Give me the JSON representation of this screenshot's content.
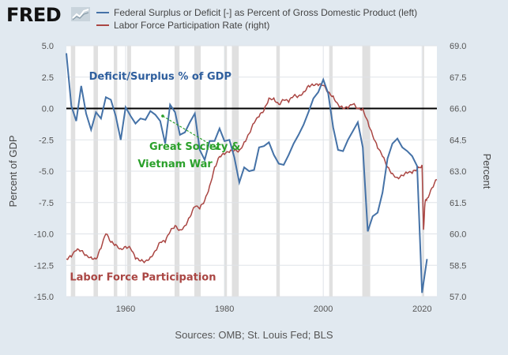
{
  "logo": {
    "text": "FRED"
  },
  "legend": [
    {
      "label": "Federal Surplus or Deficit [-] as Percent of Gross Domestic Product (left)",
      "color": "#4572a7"
    },
    {
      "label": "Labor Force Participation Rate (right)",
      "color": "#aa4643"
    }
  ],
  "source": "Sources: OMB; St. Louis Fed; BLS",
  "chart_data": {
    "type": "line",
    "xlabel": "",
    "ylabel_left": "Percent of GDP",
    "ylabel_right": "Percent",
    "xlim": [
      1948,
      2023
    ],
    "ylim_left": [
      -15.0,
      5.0
    ],
    "ylim_right": [
      57.0,
      69.0
    ],
    "x_ticks": [
      "1960",
      "1980",
      "2000",
      "2020"
    ],
    "y_ticks_left": [
      "5.0",
      "2.5",
      "0.0",
      "-2.5",
      "-5.0",
      "-7.5",
      "-10.0",
      "-12.5",
      "-15.0"
    ],
    "y_ticks_right": [
      "69.0",
      "67.5",
      "66.0",
      "64.5",
      "63.0",
      "61.5",
      "60.0",
      "58.5",
      "57.0"
    ],
    "grid": true,
    "recessions": [
      [
        1948.9,
        1949.8
      ],
      [
        1953.5,
        1954.4
      ],
      [
        1957.6,
        1958.3
      ],
      [
        1960.3,
        1961.1
      ],
      [
        1969.9,
        1970.9
      ],
      [
        1973.9,
        1975.2
      ],
      [
        1980.0,
        1980.5
      ],
      [
        1981.5,
        1982.9
      ],
      [
        1990.5,
        1991.2
      ],
      [
        2001.2,
        2001.9
      ],
      [
        2007.9,
        2009.5
      ],
      [
        2020.1,
        2020.4
      ]
    ],
    "series": [
      {
        "axis": "left",
        "color": "#4572a7",
        "x": [
          1948,
          1949,
          1950,
          1951,
          1952,
          1953,
          1954,
          1955,
          1956,
          1957,
          1958,
          1959,
          1960,
          1961,
          1962,
          1963,
          1964,
          1965,
          1966,
          1967,
          1968,
          1969,
          1970,
          1971,
          1972,
          1973,
          1974,
          1975,
          1976,
          1977,
          1978,
          1979,
          1980,
          1981,
          1982,
          1983,
          1984,
          1985,
          1986,
          1987,
          1988,
          1989,
          1990,
          1991,
          1992,
          1993,
          1994,
          1995,
          1996,
          1997,
          1998,
          1999,
          2000,
          2001,
          2002,
          2003,
          2004,
          2005,
          2006,
          2007,
          2008,
          2009,
          2010,
          2011,
          2012,
          2013,
          2014,
          2015,
          2016,
          2017,
          2018,
          2019,
          2020,
          2021
        ],
        "values": [
          4.4,
          0.2,
          -1.0,
          1.8,
          -0.4,
          -1.7,
          -0.3,
          -0.8,
          0.9,
          0.7,
          -0.6,
          -2.5,
          0.1,
          -0.6,
          -1.2,
          -0.8,
          -0.9,
          -0.2,
          -0.5,
          -1.0,
          -2.8,
          0.3,
          -0.3,
          -2.1,
          -1.9,
          -1.1,
          -0.4,
          -3.3,
          -4.1,
          -2.6,
          -2.6,
          -1.6,
          -2.6,
          -2.5,
          -3.9,
          -5.9,
          -4.7,
          -5.0,
          -4.9,
          -3.1,
          -3.0,
          -2.7,
          -3.7,
          -4.4,
          -4.5,
          -3.7,
          -2.8,
          -2.1,
          -1.3,
          -0.3,
          0.8,
          1.3,
          2.3,
          1.2,
          -1.5,
          -3.3,
          -3.4,
          -2.5,
          -1.8,
          -1.1,
          -3.1,
          -9.8,
          -8.6,
          -8.3,
          -6.7,
          -4.0,
          -2.8,
          -2.4,
          -3.1,
          -3.4,
          -3.8,
          -4.6,
          -14.7,
          -12.0
        ]
      },
      {
        "axis": "right",
        "color": "#aa4643",
        "x": [
          1948,
          1949,
          1950,
          1951,
          1952,
          1953,
          1954,
          1955,
          1956,
          1957,
          1958,
          1959,
          1960,
          1961,
          1962,
          1963,
          1964,
          1965,
          1966,
          1967,
          1968,
          1969,
          1970,
          1971,
          1972,
          1973,
          1974,
          1975,
          1976,
          1977,
          1978,
          1979,
          1980,
          1981,
          1982,
          1983,
          1984,
          1985,
          1986,
          1987,
          1988,
          1989,
          1990,
          1991,
          1992,
          1993,
          1994,
          1995,
          1996,
          1997,
          1998,
          1999,
          2000,
          2001,
          2002,
          2003,
          2004,
          2005,
          2006,
          2007,
          2008,
          2009,
          2010,
          2011,
          2012,
          2013,
          2014,
          2015,
          2016,
          2017,
          2018,
          2019,
          2020,
          2020.3,
          2020.6,
          2021,
          2022,
          2023
        ],
        "values": [
          58.8,
          58.9,
          59.2,
          59.2,
          59.0,
          58.9,
          58.8,
          59.3,
          60.0,
          59.6,
          59.5,
          59.3,
          59.4,
          59.3,
          58.8,
          58.7,
          58.7,
          58.9,
          59.2,
          59.6,
          59.6,
          60.1,
          60.4,
          60.2,
          60.4,
          60.8,
          61.3,
          61.2,
          61.6,
          62.3,
          63.2,
          63.7,
          63.8,
          63.9,
          64.0,
          64.0,
          64.4,
          64.8,
          65.3,
          65.6,
          65.9,
          66.5,
          66.5,
          66.2,
          66.4,
          66.3,
          66.6,
          66.6,
          66.8,
          67.1,
          67.1,
          67.1,
          67.1,
          66.8,
          66.6,
          66.2,
          66.0,
          66.0,
          66.2,
          66.0,
          66.0,
          65.4,
          64.7,
          64.1,
          63.7,
          63.2,
          62.9,
          62.7,
          62.8,
          62.9,
          62.9,
          63.1,
          63.3,
          60.2,
          61.5,
          61.7,
          62.2,
          62.6
        ]
      }
    ],
    "annotations": [
      {
        "text": "Deficit/Surplus % of GDP",
        "x": 1967,
        "y_left": 2.3,
        "color": "#2f5f9e"
      },
      {
        "text": "Great Society &",
        "x": 1974,
        "y_left": -3.3,
        "color": "#2aa02a"
      },
      {
        "text": "Vietnam War",
        "x": 1970,
        "y_left": -4.7,
        "color": "#2aa02a"
      },
      {
        "text": "Labor Force Participation",
        "x": 1963.5,
        "y_left": -13.7,
        "color": "#aa4643"
      }
    ],
    "arrow": {
      "from": [
        1967.5,
        -0.6
      ],
      "to": [
        1979,
        -3.3
      ],
      "color": "#2aa02a"
    }
  }
}
